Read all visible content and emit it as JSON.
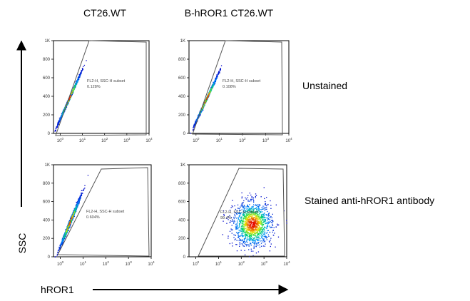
{
  "figure": {
    "column_headers": [
      "CT26.WT",
      "B-hROR1 CT26.WT"
    ],
    "row_labels": [
      "Unstained",
      "Stained anti-hROR1 antibody"
    ],
    "y_axis_label": "SSC",
    "x_axis_label": "hROR1"
  },
  "chart_data": [
    {
      "type": "scatter",
      "cell_line": "CT26.WT",
      "condition": "Unstained",
      "x_scale": "log",
      "xlim": [
        0.5,
        10000
      ],
      "ylim": [
        0,
        1000
      ],
      "x_ticks": [
        {
          "base": "10",
          "exp": "0"
        },
        {
          "base": "10",
          "exp": "1"
        },
        {
          "base": "10",
          "exp": "2"
        },
        {
          "base": "10",
          "exp": "3"
        },
        {
          "base": "10",
          "exp": "4"
        }
      ],
      "y_ticks": [
        "0",
        "200",
        "400",
        "600",
        "800",
        "1K"
      ],
      "gate": {
        "name": "FL2-H, SSC-H subset",
        "percent": "0.128%"
      },
      "populations": [
        {
          "x_center": 2.5,
          "y_center": 380,
          "x_spread_decades": 0.22,
          "y_spread": 110,
          "shape": "diagonal"
        }
      ]
    },
    {
      "type": "scatter",
      "cell_line": "B-hROR1 CT26.WT",
      "condition": "Unstained",
      "x_scale": "log",
      "xlim": [
        0.5,
        10000
      ],
      "ylim": [
        0,
        1000
      ],
      "x_ticks": [
        {
          "base": "10",
          "exp": "0"
        },
        {
          "base": "10",
          "exp": "1"
        },
        {
          "base": "10",
          "exp": "2"
        },
        {
          "base": "10",
          "exp": "3"
        },
        {
          "base": "10",
          "exp": "4"
        }
      ],
      "y_ticks": [
        "0",
        "200",
        "400",
        "600",
        "800",
        "1K"
      ],
      "gate": {
        "name": "FL2-H, SSC-H subset",
        "percent": "0.108%"
      },
      "populations": [
        {
          "x_center": 2.7,
          "y_center": 370,
          "x_spread_decades": 0.22,
          "y_spread": 110,
          "shape": "diagonal"
        }
      ]
    },
    {
      "type": "scatter",
      "cell_line": "CT26.WT",
      "condition": "Stained anti-hROR1 antibody",
      "x_scale": "log",
      "xlim": [
        0.5,
        10000
      ],
      "ylim": [
        0,
        1000
      ],
      "x_ticks": [
        {
          "base": "10",
          "exp": "0"
        },
        {
          "base": "10",
          "exp": "1"
        },
        {
          "base": "10",
          "exp": "2"
        },
        {
          "base": "10",
          "exp": "3"
        },
        {
          "base": "10",
          "exp": "4"
        }
      ],
      "y_ticks": [
        "0",
        "200",
        "400",
        "600",
        "800",
        "1K"
      ],
      "gate": {
        "name": "FL2-H, SSC-H subset",
        "percent": "0.604%"
      },
      "populations": [
        {
          "x_center": 2.6,
          "y_center": 380,
          "x_spread_decades": 0.2,
          "y_spread": 115,
          "shape": "diagonal"
        }
      ]
    },
    {
      "type": "scatter",
      "cell_line": "B-hROR1 CT26.WT",
      "condition": "Stained anti-hROR1 antibody",
      "x_scale": "log",
      "xlim": [
        0.5,
        10000
      ],
      "ylim": [
        0,
        1000
      ],
      "x_ticks": [
        {
          "base": "10",
          "exp": "0"
        },
        {
          "base": "10",
          "exp": "1"
        },
        {
          "base": "10",
          "exp": "2"
        },
        {
          "base": "10",
          "exp": "3"
        },
        {
          "base": "10",
          "exp": "4"
        }
      ],
      "y_ticks": [
        "0",
        "200",
        "400",
        "600",
        "800",
        "1K"
      ],
      "gate": {
        "name": "FL2-H, SSC-H subset",
        "percent": "99.4%"
      },
      "populations": [
        {
          "x_center": 300,
          "y_center": 360,
          "x_spread_decades": 0.42,
          "y_spread": 120,
          "shape": "round"
        }
      ]
    }
  ]
}
